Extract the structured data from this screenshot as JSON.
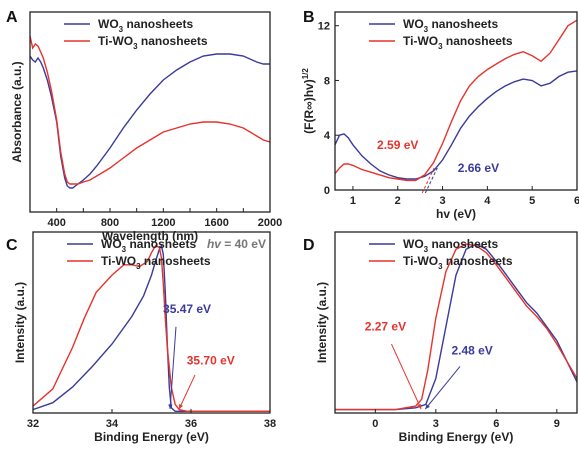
{
  "colors": {
    "wo3": "#3a3a9c",
    "tiwo3": "#e8322c",
    "axis": "#222222"
  },
  "chart_data": [
    {
      "panel": "A",
      "type": "line",
      "xlabel": "Wavelength (nm)",
      "ylabel": "Absorbance (a.u.)",
      "xlim": [
        200,
        2000
      ],
      "ylim": [
        0,
        1
      ],
      "xticks": [
        200,
        400,
        600,
        800,
        1000,
        1200,
        1400,
        1600,
        1800,
        2000
      ],
      "xtick_labels": [
        "",
        "400",
        "",
        "800",
        "",
        "1200",
        "",
        "1600",
        "",
        "2000"
      ],
      "legend_position": "top-left",
      "series": [
        {
          "name": "WO3 nanosheets",
          "color": "#3a3a9c",
          "x": [
            200,
            220,
            240,
            260,
            280,
            300,
            330,
            360,
            400,
            430,
            460,
            480,
            500,
            520,
            540,
            560,
            600,
            650,
            700,
            800,
            900,
            1000,
            1100,
            1200,
            1300,
            1400,
            1500,
            1600,
            1700,
            1800,
            1900,
            1950,
            2000
          ],
          "y": [
            0.78,
            0.76,
            0.75,
            0.77,
            0.75,
            0.72,
            0.66,
            0.58,
            0.45,
            0.28,
            0.17,
            0.13,
            0.12,
            0.12,
            0.13,
            0.14,
            0.16,
            0.19,
            0.23,
            0.32,
            0.42,
            0.51,
            0.59,
            0.66,
            0.71,
            0.75,
            0.78,
            0.79,
            0.79,
            0.78,
            0.75,
            0.74,
            0.74
          ]
        },
        {
          "name": "Ti-WO3 nanosheets",
          "color": "#e8322c",
          "x": [
            200,
            220,
            240,
            260,
            280,
            300,
            330,
            360,
            400,
            430,
            460,
            480,
            500,
            520,
            540,
            560,
            600,
            650,
            700,
            800,
            900,
            1000,
            1100,
            1200,
            1300,
            1400,
            1500,
            1600,
            1700,
            1800,
            1900,
            1950,
            2000
          ],
          "y": [
            0.88,
            0.82,
            0.84,
            0.83,
            0.8,
            0.77,
            0.7,
            0.61,
            0.46,
            0.3,
            0.19,
            0.15,
            0.14,
            0.14,
            0.14,
            0.14,
            0.15,
            0.16,
            0.18,
            0.22,
            0.27,
            0.32,
            0.36,
            0.4,
            0.42,
            0.44,
            0.45,
            0.45,
            0.44,
            0.42,
            0.38,
            0.36,
            0.35
          ]
        }
      ]
    },
    {
      "panel": "B",
      "type": "line",
      "xlabel": "hv (eV)",
      "ylabel": "(F(R∞)hv)1/2",
      "xlim": [
        0.6,
        6
      ],
      "ylim": [
        0,
        13
      ],
      "xticks": [
        1,
        2,
        3,
        4,
        5,
        6
      ],
      "xtick_labels": [
        "1",
        "2",
        "3",
        "4",
        "5",
        "6"
      ],
      "yticks": [
        0,
        4,
        8,
        12
      ],
      "ytick_labels": [
        "0",
        "4",
        "8",
        "12"
      ],
      "legend_position": "top-left",
      "annotations": [
        {
          "text": "2.59 eV",
          "color": "#e8322c",
          "x": 2.59
        },
        {
          "text": "2.66 eV",
          "color": "#3a3a9c",
          "x": 2.66
        }
      ],
      "series": [
        {
          "name": "WO3 nanosheets",
          "color": "#3a3a9c",
          "x": [
            0.6,
            0.7,
            0.8,
            0.9,
            1.0,
            1.2,
            1.4,
            1.6,
            1.8,
            2.0,
            2.2,
            2.4,
            2.6,
            2.8,
            3.0,
            3.2,
            3.4,
            3.6,
            3.8,
            4.0,
            4.2,
            4.4,
            4.6,
            4.8,
            5.0,
            5.2,
            5.4,
            5.6,
            5.8,
            6.0
          ],
          "y": [
            3.3,
            4.0,
            4.1,
            3.8,
            3.3,
            2.5,
            1.9,
            1.4,
            1.1,
            0.9,
            0.8,
            0.8,
            1.0,
            1.4,
            2.2,
            3.3,
            4.5,
            5.4,
            6.1,
            6.7,
            7.2,
            7.6,
            7.9,
            8.1,
            8.0,
            7.6,
            7.8,
            8.3,
            8.6,
            8.7
          ]
        },
        {
          "name": "Ti-WO3 nanosheets",
          "color": "#e8322c",
          "x": [
            0.6,
            0.7,
            0.8,
            0.9,
            1.0,
            1.2,
            1.4,
            1.6,
            1.8,
            2.0,
            2.2,
            2.4,
            2.6,
            2.8,
            3.0,
            3.2,
            3.4,
            3.6,
            3.8,
            4.0,
            4.2,
            4.4,
            4.6,
            4.8,
            5.0,
            5.2,
            5.4,
            5.6,
            5.8,
            6.0
          ],
          "y": [
            1.2,
            1.6,
            1.9,
            1.9,
            1.8,
            1.5,
            1.3,
            1.1,
            0.9,
            0.8,
            0.7,
            0.7,
            1.1,
            2.0,
            3.4,
            5.0,
            6.5,
            7.6,
            8.3,
            8.8,
            9.2,
            9.6,
            9.9,
            10.1,
            9.8,
            9.4,
            10.0,
            11.0,
            12.0,
            12.4
          ]
        }
      ]
    },
    {
      "panel": "C",
      "type": "line",
      "xlabel": "Binding Energy (eV)",
      "ylabel": "Intensity (a.u.)",
      "xlim": [
        32,
        38
      ],
      "ylim": [
        0,
        1.05
      ],
      "xticks": [
        32,
        34,
        36,
        38
      ],
      "xtick_labels": [
        "32",
        "34",
        "36",
        "38"
      ],
      "legend_position": "top-left",
      "header_note": {
        "italic": "hv",
        "text": " = 40 eV"
      },
      "annotations": [
        {
          "text": "35.47 eV",
          "color": "#3a3a9c",
          "x": 35.47
        },
        {
          "text": "35.70 eV",
          "color": "#e8322c",
          "x": 35.7
        }
      ],
      "series": [
        {
          "name": "WO3 nanosheets",
          "color": "#3a3a9c",
          "x": [
            32.0,
            32.5,
            33.0,
            33.5,
            34.0,
            34.5,
            34.8,
            35.0,
            35.1,
            35.2,
            35.25,
            35.3,
            35.35,
            35.4,
            35.45,
            35.5,
            35.6,
            36.0,
            37.0,
            38.0
          ],
          "y": [
            0.02,
            0.06,
            0.15,
            0.27,
            0.4,
            0.56,
            0.68,
            0.8,
            0.88,
            0.95,
            0.97,
            0.92,
            0.7,
            0.4,
            0.15,
            0.03,
            0.01,
            0.01,
            0.01,
            0.01
          ]
        },
        {
          "name": "Ti-WO3 nanosheets",
          "color": "#e8322c",
          "x": [
            32.0,
            32.5,
            33.0,
            33.3,
            33.6,
            34.0,
            34.3,
            34.5,
            34.7,
            34.9,
            35.0,
            35.1,
            35.2,
            35.25,
            35.3,
            35.35,
            35.4,
            35.5,
            35.6,
            35.7,
            35.9,
            36.0,
            37.0,
            38.0
          ],
          "y": [
            0.04,
            0.14,
            0.38,
            0.55,
            0.7,
            0.8,
            0.86,
            0.86,
            0.85,
            0.88,
            0.93,
            0.97,
            0.96,
            0.9,
            0.75,
            0.55,
            0.38,
            0.15,
            0.05,
            0.02,
            0.01,
            0.01,
            0.01,
            0.01
          ]
        }
      ]
    },
    {
      "panel": "D",
      "type": "line",
      "xlabel": "Binding Energy (eV)",
      "ylabel": "Intensity (a.u.)",
      "xlim": [
        -2,
        10
      ],
      "ylim": [
        0,
        1.05
      ],
      "xticks": [
        0,
        3,
        6,
        9
      ],
      "xtick_labels": [
        "0",
        "3",
        "6",
        "9"
      ],
      "legend_position": "top-left",
      "annotations": [
        {
          "text": "2.27 eV",
          "color": "#e8322c",
          "x": 2.27
        },
        {
          "text": "2.48 eV",
          "color": "#3a3a9c",
          "x": 2.48
        }
      ],
      "series": [
        {
          "name": "WO3 nanosheets",
          "color": "#3a3a9c",
          "x": [
            -2,
            0,
            1,
            2,
            2.5,
            3.0,
            3.5,
            4.0,
            4.5,
            5.0,
            5.5,
            6.0,
            6.5,
            7.0,
            7.5,
            8.0,
            8.5,
            9.0,
            9.5,
            10.0
          ],
          "y": [
            0.02,
            0.02,
            0.02,
            0.03,
            0.05,
            0.2,
            0.5,
            0.8,
            0.95,
            0.98,
            0.95,
            0.88,
            0.8,
            0.72,
            0.64,
            0.58,
            0.5,
            0.42,
            0.3,
            0.18
          ]
        },
        {
          "name": "Ti-WO3 nanosheets",
          "color": "#e8322c",
          "x": [
            -2,
            0,
            1,
            2,
            2.3,
            2.6,
            3.0,
            3.5,
            4.0,
            4.5,
            5.0,
            5.5,
            6.0,
            6.5,
            7.0,
            7.5,
            8.0,
            8.5,
            9.0,
            9.5,
            10.0
          ],
          "y": [
            0.02,
            0.02,
            0.02,
            0.04,
            0.08,
            0.25,
            0.55,
            0.82,
            0.95,
            0.98,
            0.97,
            0.93,
            0.86,
            0.78,
            0.7,
            0.62,
            0.56,
            0.49,
            0.4,
            0.3,
            0.2
          ]
        }
      ]
    }
  ],
  "panels": [
    {
      "letter": "A",
      "legend": [
        {
          "base": "WO",
          "sub": "3",
          "rest": " nanosheets"
        },
        {
          "base": "Ti-WO",
          "sub": "3",
          "rest": " nanosheets"
        }
      ]
    },
    {
      "letter": "B",
      "legend": [
        {
          "base": "WO",
          "sub": "3",
          "rest": " nanosheets"
        },
        {
          "base": "Ti-WO",
          "sub": "3",
          "rest": " nanosheets"
        }
      ]
    },
    {
      "letter": "C",
      "legend": [
        {
          "base": "WO",
          "sub": "3",
          "rest": " nanosheets"
        },
        {
          "base": "Ti-WO",
          "sub": "3",
          "rest": " nanosheets"
        }
      ]
    },
    {
      "letter": "D",
      "legend": [
        {
          "base": "WO",
          "sub": "3",
          "rest": " nanosheets"
        },
        {
          "base": "Ti-WO",
          "sub": "3",
          "rest": " nanosheets"
        }
      ]
    }
  ]
}
